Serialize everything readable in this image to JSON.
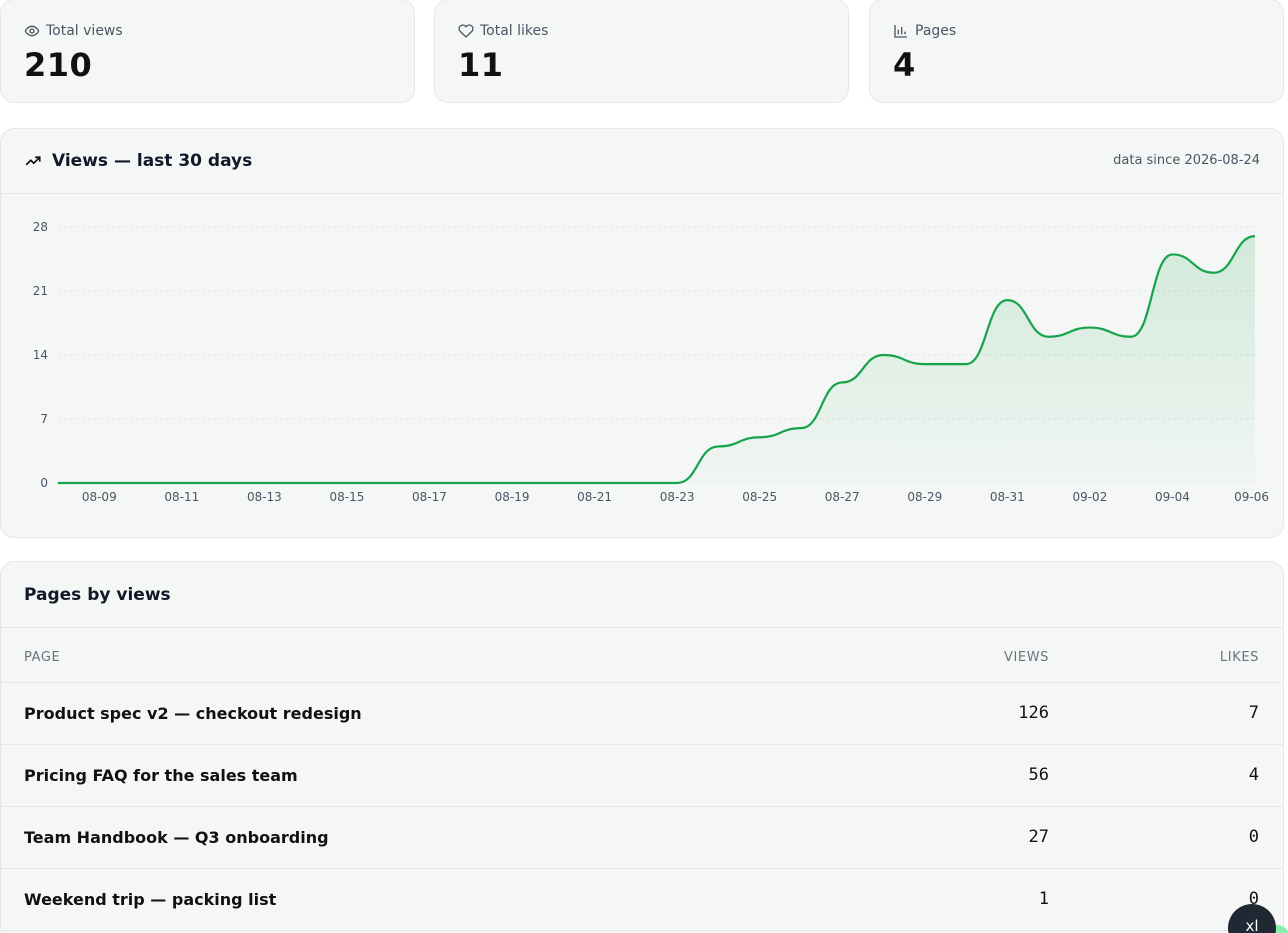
{
  "stats": [
    {
      "label": "Total views",
      "value": "210",
      "icon": "eye-icon"
    },
    {
      "label": "Total likes",
      "value": "11",
      "icon": "heart-icon"
    },
    {
      "label": "Pages",
      "value": "4",
      "icon": "bar-chart-icon"
    }
  ],
  "chart": {
    "title": "Views — last 30 days",
    "note": "data since 2026-08-24",
    "icon": "trending-up-icon"
  },
  "chart_data": {
    "type": "area",
    "title": "Views — last 30 days",
    "x": [
      "08-08",
      "08-09",
      "08-10",
      "08-11",
      "08-12",
      "08-13",
      "08-14",
      "08-15",
      "08-16",
      "08-17",
      "08-18",
      "08-19",
      "08-20",
      "08-21",
      "08-22",
      "08-23",
      "08-24",
      "08-25",
      "08-26",
      "08-27",
      "08-28",
      "08-29",
      "08-30",
      "08-31",
      "09-01",
      "09-02",
      "09-03",
      "09-04",
      "09-05",
      "09-06"
    ],
    "x_tick_labels": [
      "08-09",
      "08-11",
      "08-13",
      "08-15",
      "08-17",
      "08-19",
      "08-21",
      "08-23",
      "08-25",
      "08-27",
      "08-29",
      "08-31",
      "09-02",
      "09-04",
      "09-06"
    ],
    "series": [
      {
        "values": [
          0,
          0,
          0,
          0,
          0,
          0,
          0,
          0,
          0,
          0,
          0,
          0,
          0,
          0,
          0,
          0,
          4,
          5,
          6,
          11,
          14,
          13,
          13,
          20,
          16,
          17,
          16,
          25,
          23,
          27
        ]
      }
    ],
    "ylim": [
      0,
      28
    ],
    "y_ticks": [
      0,
      7,
      14,
      21,
      28
    ],
    "grid": true,
    "color": "#16a34a"
  },
  "table": {
    "title": "Pages by views",
    "columns": [
      "PAGE",
      "VIEWS",
      "LIKES"
    ],
    "rows": [
      {
        "page": "Product spec v2 — checkout redesign",
        "views": "126",
        "likes": "7"
      },
      {
        "page": "Pricing FAQ for the sales team",
        "views": "56",
        "likes": "4"
      },
      {
        "page": "Team Handbook — Q3 onboarding",
        "views": "27",
        "likes": "0"
      },
      {
        "page": "Weekend trip — packing list",
        "views": "1",
        "likes": "0"
      }
    ]
  },
  "fab": {
    "label": "xl"
  }
}
